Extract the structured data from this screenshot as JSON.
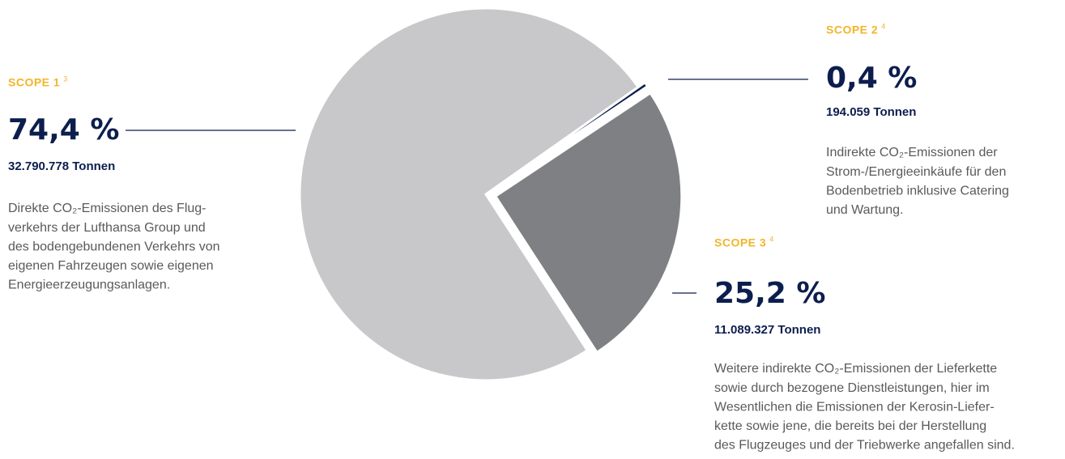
{
  "chart_data": {
    "type": "pie",
    "categories": [
      "SCOPE 1",
      "SCOPE 2",
      "SCOPE 3"
    ],
    "footnotes": [
      "3",
      "4",
      "4"
    ],
    "values": [
      74.4,
      0.4,
      25.2
    ],
    "value_labels": [
      "74,4 %",
      "0,4 %",
      "25,2 %"
    ],
    "colors": [
      "#c8c8ca",
      "#0c1e4e",
      "#7f8083"
    ],
    "tonnes": [
      "32.790.778 Tonnen",
      "194.059 Tonnen",
      "11.089.327 Tonnen"
    ],
    "descriptions": [
      [
        "Direkte CO₂-Emissionen des Flug-",
        "verkehrs der Lufthansa Group und",
        "des bodengebundenen Verkehrs von",
        "eigenen Fahrzeugen sowie eigenen",
        "Energieerzeugungsanlagen."
      ],
      [
        "Indirekte CO₂-Emissionen der",
        "Strom-/Energieeinkäufe für den",
        "Bodenbetrieb inklusive Catering",
        "und Wartung."
      ],
      [
        "Weitere indirekte CO₂-Emissionen der Lieferkette",
        "sowie durch bezogene Dienstleistungen, hier im",
        "Wesentlichen die Emissionen der Kerosin-Liefer-",
        "kette sowie jene, die bereits bei der Herstellung",
        "des Flugzeuges und der Triebwerke angefallen sind."
      ]
    ]
  }
}
